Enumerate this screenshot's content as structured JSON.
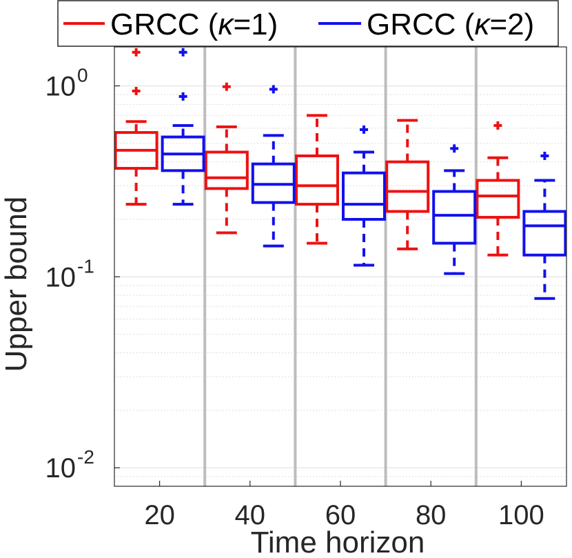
{
  "chart_data": {
    "type": "boxplot",
    "title": "",
    "xlabel": "Time horizon",
    "ylabel": "Upper bound",
    "yscale": "log",
    "ylim": [
      0.008,
      1.6
    ],
    "grid": true,
    "legend_position": "top",
    "categories": [
      "20",
      "40",
      "60",
      "80",
      "100"
    ],
    "y_ticks": [
      {
        "value": 1,
        "base": "10",
        "exp": "0"
      },
      {
        "value": 0.1,
        "base": "10",
        "exp": "-1"
      },
      {
        "value": 0.01,
        "base": "10",
        "exp": "-2"
      }
    ],
    "series": [
      {
        "name": "GRCC (κ=1)",
        "name_base": "GRCC (",
        "name_symbol": "κ",
        "name_rest": "=1)",
        "color": "#ee1111",
        "boxes": [
          {
            "whisker_low": 0.24,
            "q1": 0.37,
            "median": 0.46,
            "q3": 0.57,
            "whisker_high": 0.65,
            "outliers": [
              0.94,
              1.5
            ]
          },
          {
            "whisker_low": 0.17,
            "q1": 0.29,
            "median": 0.33,
            "q3": 0.45,
            "whisker_high": 0.61,
            "outliers": [
              0.99
            ]
          },
          {
            "whisker_low": 0.15,
            "q1": 0.24,
            "median": 0.3,
            "q3": 0.43,
            "whisker_high": 0.7,
            "outliers": []
          },
          {
            "whisker_low": 0.14,
            "q1": 0.22,
            "median": 0.28,
            "q3": 0.4,
            "whisker_high": 0.66,
            "outliers": []
          },
          {
            "whisker_low": 0.13,
            "q1": 0.205,
            "median": 0.265,
            "q3": 0.32,
            "whisker_high": 0.42,
            "outliers": [
              0.62
            ]
          }
        ]
      },
      {
        "name": "GRCC (κ=2)",
        "name_base": "GRCC (",
        "name_symbol": "κ",
        "name_rest": "=2)",
        "color": "#1111ee",
        "boxes": [
          {
            "whisker_low": 0.24,
            "q1": 0.36,
            "median": 0.44,
            "q3": 0.54,
            "whisker_high": 0.62,
            "outliers": [
              0.88,
              1.5
            ]
          },
          {
            "whisker_low": 0.145,
            "q1": 0.245,
            "median": 0.305,
            "q3": 0.39,
            "whisker_high": 0.55,
            "outliers": [
              0.96
            ]
          },
          {
            "whisker_low": 0.115,
            "q1": 0.2,
            "median": 0.24,
            "q3": 0.35,
            "whisker_high": 0.45,
            "outliers": [
              0.59
            ]
          },
          {
            "whisker_low": 0.104,
            "q1": 0.15,
            "median": 0.21,
            "q3": 0.28,
            "whisker_high": 0.36,
            "outliers": [
              0.47
            ]
          },
          {
            "whisker_low": 0.077,
            "q1": 0.13,
            "median": 0.185,
            "q3": 0.22,
            "whisker_high": 0.32,
            "outliers": [
              0.43
            ]
          }
        ]
      }
    ]
  }
}
